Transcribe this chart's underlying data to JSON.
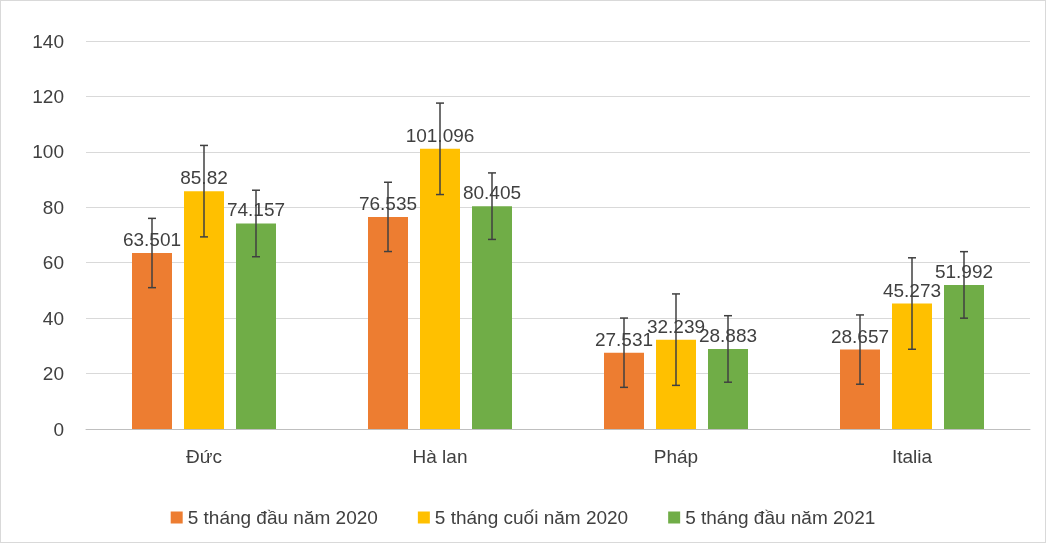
{
  "chart_data": {
    "type": "bar",
    "categories": [
      "Đức",
      "Hà lan",
      "Pháp",
      "Italia"
    ],
    "series": [
      {
        "name": "5 tháng đầu năm 2020",
        "color": "#ed7d31",
        "values": [
          63.501,
          76.535,
          27.531,
          28.657
        ],
        "errors": [
          12.5,
          12.5,
          12.5,
          12.5
        ]
      },
      {
        "name": "5 tháng cuối năm 2020",
        "color": "#ffc000",
        "values": [
          85.82,
          101.096,
          32.239,
          45.273
        ],
        "errors": [
          16.5,
          16.5,
          16.5,
          16.5
        ]
      },
      {
        "name": "5 tháng đầu năm 2021",
        "color": "#70ad47",
        "values": [
          74.157,
          80.405,
          28.883,
          51.992
        ],
        "errors": [
          12,
          12,
          12,
          12
        ]
      }
    ],
    "ylim": [
      0,
      140
    ],
    "yticks": [
      0,
      20,
      40,
      60,
      80,
      100,
      120,
      140
    ],
    "grid": "y",
    "legend": "bottom",
    "data_labels": true
  }
}
